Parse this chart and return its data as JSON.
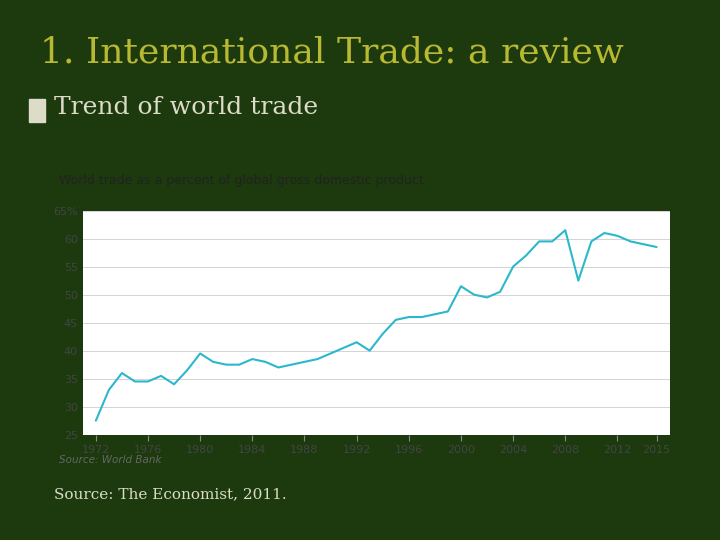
{
  "title": "1. International Trade: a review",
  "subtitle": "Trend of world trade",
  "chart_title": "World trade as a percent of global gross domestic product",
  "source_chart": "Source: World Bank",
  "source_main": "Source: The Economist, 2011.",
  "bg_color": "#1c3a0e",
  "chart_bg": "#ffffff",
  "line_color": "#2bb8cc",
  "title_color": "#b8b832",
  "subtitle_color": "#dcdcc8",
  "bullet_color": "#7a7a20",
  "accent_bar_color": "#7a7a20",
  "rule_color": "#7a7a20",
  "years": [
    1972,
    1973,
    1974,
    1975,
    1976,
    1977,
    1978,
    1979,
    1980,
    1981,
    1982,
    1983,
    1984,
    1985,
    1986,
    1987,
    1988,
    1989,
    1990,
    1991,
    1992,
    1993,
    1994,
    1995,
    1996,
    1997,
    1998,
    1999,
    2000,
    2001,
    2002,
    2003,
    2004,
    2005,
    2006,
    2007,
    2008,
    2009,
    2010,
    2011,
    2012,
    2013,
    2014,
    2015
  ],
  "values": [
    27.5,
    33.0,
    36.0,
    34.5,
    34.5,
    35.5,
    34.0,
    36.5,
    39.5,
    38.0,
    37.5,
    37.5,
    38.5,
    38.0,
    37.0,
    37.5,
    38.0,
    38.5,
    39.5,
    40.5,
    41.5,
    40.0,
    43.0,
    45.5,
    46.0,
    46.0,
    46.5,
    47.0,
    51.5,
    50.0,
    49.5,
    50.5,
    55.0,
    57.0,
    59.5,
    59.5,
    61.5,
    52.5,
    59.5,
    61.0,
    60.5,
    59.5,
    59.0,
    58.5
  ],
  "yticks": [
    25,
    30,
    35,
    40,
    45,
    50,
    55,
    60,
    65
  ],
  "ytick_labels": [
    "25",
    "30",
    "35",
    "40",
    "45",
    "50",
    "55",
    "60",
    "65%"
  ],
  "xticks": [
    1972,
    1976,
    1980,
    1984,
    1988,
    1992,
    1996,
    2000,
    2004,
    2008,
    2012,
    2015
  ],
  "ylim": [
    25,
    65
  ],
  "xlim": [
    1971,
    2016
  ]
}
